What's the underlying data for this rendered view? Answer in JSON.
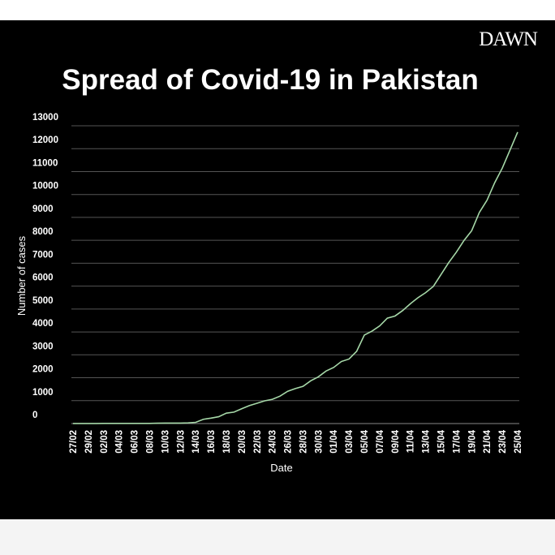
{
  "chart_data": {
    "type": "line",
    "brand": "DAWN",
    "title": "Spread of Covid-19 in Pakistan",
    "x_label": "Date",
    "y_label": "Number of cases",
    "categories": [
      "27/02",
      null,
      "29/02",
      null,
      "02/03",
      null,
      "04/03",
      null,
      "06/03",
      null,
      "08/03",
      null,
      "10/03",
      null,
      "12/03",
      null,
      "14/03",
      null,
      "16/03",
      null,
      "18/03",
      null,
      "20/03",
      null,
      "22/03",
      null,
      "24/03",
      null,
      "26/03",
      null,
      "28/03",
      null,
      "30/03",
      null,
      "01/04",
      null,
      "03/04",
      null,
      "05/04",
      null,
      "07/04",
      null,
      "09/04",
      null,
      "11/04",
      null,
      "13/04",
      null,
      "15/04",
      null,
      "17/04",
      null,
      "19/04",
      null,
      "21/04",
      null,
      "23/04",
      null,
      "25/04"
    ],
    "series": [
      {
        "color": "#a6d8a8",
        "values": [
          2,
          4,
          4,
          4,
          5,
          5,
          5,
          6,
          6,
          6,
          6,
          16,
          19,
          20,
          21,
          31,
          53,
          187,
          236,
          299,
          454,
          501,
          646,
          784,
          887,
          991,
          1057,
          1197,
          1408,
          1526,
          1625,
          1865,
          2039,
          2291,
          2450,
          2708,
          2818,
          3157,
          3864,
          4035,
          4263,
          4601,
          4695,
          4934,
          5230,
          5496,
          5716,
          5988,
          6505,
          7025,
          7481,
          7993,
          8418,
          9216,
          9749,
          10513,
          11155,
          11940,
          12723
        ]
      }
    ],
    "ylim": [
      0,
      13000
    ],
    "yticks": [
      0,
      1000,
      2000,
      3000,
      4000,
      5000,
      6000,
      7000,
      8000,
      9000,
      10000,
      11000,
      12000,
      13000
    ],
    "grid": true
  }
}
